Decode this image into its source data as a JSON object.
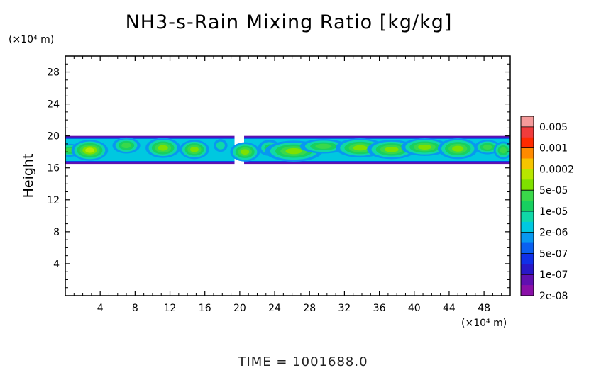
{
  "chart_data": {
    "type": "heatmap",
    "title": "NH3-s-Rain Mixing Ratio [kg/kg]",
    "ylabel": "Height",
    "y_units": "(×10⁴ m)",
    "x_units": "(×10⁴ m)",
    "footer": "TIME = 1001688.0",
    "x_ticks": [
      "4",
      "8",
      "12",
      "16",
      "20",
      "24",
      "28",
      "32",
      "36",
      "40",
      "44",
      "48"
    ],
    "y_ticks": [
      "4",
      "8",
      "12",
      "16",
      "20",
      "24",
      "28"
    ],
    "xlim": [
      0,
      51
    ],
    "ylim": [
      0,
      30
    ],
    "grid": false,
    "legend": "colorbar-right",
    "colorbar": {
      "labels": [
        "0.005",
        "0.001",
        "0.0002",
        "5e-05",
        "1e-05",
        "2e-06",
        "5e-07",
        "1e-07",
        "2e-08"
      ],
      "colors": [
        "#f59a9a",
        "#f03c3c",
        "#ff2a00",
        "#ff8a00",
        "#f5c400",
        "#b8e600",
        "#7fe000",
        "#3ad84a",
        "#18d060",
        "#10d8a8",
        "#00c8e0",
        "#0898f0",
        "#0a60f0",
        "#1030e8",
        "#2818c8",
        "#6010b0",
        "#8a10a8"
      ]
    },
    "layer": {
      "x_range": [
        0,
        51
      ],
      "height_range": [
        16.5,
        20
      ],
      "gap_x": [
        19.4,
        20.5
      ],
      "core_height_range": [
        17.5,
        19
      ],
      "max_value": 5e-05,
      "min_value": 2e-08
    },
    "blobs": [
      {
        "x": 0.5,
        "y": 18.2,
        "w": 3.0,
        "h": 1.6,
        "level": 0.55
      },
      {
        "x": 2.8,
        "y": 18.2,
        "w": 4.2,
        "h": 2.6,
        "level": 0.82
      },
      {
        "x": 7.0,
        "y": 18.8,
        "w": 3.2,
        "h": 2.0,
        "level": 0.58
      },
      {
        "x": 11.2,
        "y": 18.5,
        "w": 4.0,
        "h": 2.5,
        "level": 0.72
      },
      {
        "x": 14.8,
        "y": 18.3,
        "w": 3.4,
        "h": 2.4,
        "level": 0.66
      },
      {
        "x": 17.8,
        "y": 18.8,
        "w": 1.6,
        "h": 1.6,
        "level": 0.32
      },
      {
        "x": 20.6,
        "y": 18.0,
        "w": 3.4,
        "h": 2.4,
        "level": 0.66
      },
      {
        "x": 23.4,
        "y": 18.5,
        "w": 2.6,
        "h": 2.0,
        "level": 0.48
      },
      {
        "x": 26.2,
        "y": 18.1,
        "w": 6.6,
        "h": 2.6,
        "level": 0.74
      },
      {
        "x": 29.6,
        "y": 18.7,
        "w": 5.4,
        "h": 1.8,
        "level": 0.62
      },
      {
        "x": 33.8,
        "y": 18.5,
        "w": 5.6,
        "h": 2.4,
        "level": 0.68
      },
      {
        "x": 37.4,
        "y": 18.3,
        "w": 5.6,
        "h": 2.4,
        "level": 0.72
      },
      {
        "x": 41.2,
        "y": 18.6,
        "w": 5.4,
        "h": 2.2,
        "level": 0.66
      },
      {
        "x": 45.0,
        "y": 18.4,
        "w": 4.6,
        "h": 2.6,
        "level": 0.7
      },
      {
        "x": 48.4,
        "y": 18.6,
        "w": 3.0,
        "h": 1.8,
        "level": 0.5
      },
      {
        "x": 50.2,
        "y": 18.2,
        "w": 2.2,
        "h": 2.2,
        "level": 0.6
      }
    ]
  }
}
